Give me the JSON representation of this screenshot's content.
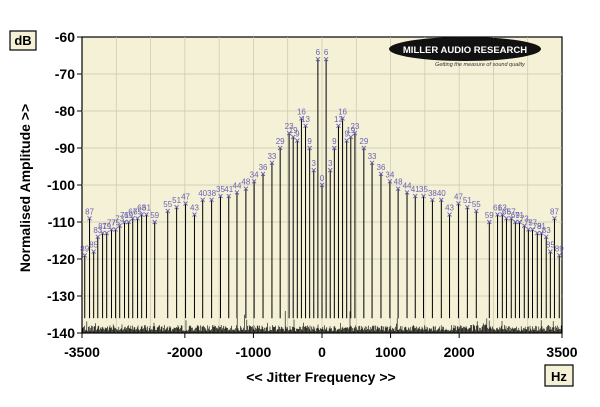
{
  "units": {
    "y": "dB",
    "x": "Hz"
  },
  "logo": {
    "text": "MILLER AUDIO RESEARCH",
    "tagline": "Getting the measure of sound quality"
  },
  "chart_data": {
    "type": "line",
    "title": "",
    "xlabel": "<< Jitter Frequency >>",
    "ylabel": "Normalised Amplitude >>",
    "xlim": [
      -3500,
      3500
    ],
    "ylim": [
      -140,
      -60
    ],
    "xticks": [
      -3500,
      -2000,
      -1000,
      0,
      1000,
      2000,
      3500
    ],
    "xtick_labels": [
      "-3500",
      "-2000",
      "-1000",
      "0",
      "1000",
      "2000",
      "3500"
    ],
    "yticks": [
      -60,
      -70,
      -80,
      -90,
      -100,
      -110,
      -120,
      -130,
      -140
    ],
    "ytick_labels": [
      "-60",
      "-70",
      "-80",
      "-90",
      "-100",
      "-110",
      "-120",
      "-130",
      "-140"
    ],
    "grid": true,
    "legend": "none",
    "marker_color": "#6a63b4",
    "line_color": "#000000",
    "noise_floor_db": -136,
    "series": [
      {
        "points": [
          {
            "x": -3460,
            "y": -119,
            "label": "89"
          },
          {
            "x": -3390,
            "y": -109,
            "label": "87"
          },
          {
            "x": -3330,
            "y": -118,
            "label": "85"
          },
          {
            "x": -3270,
            "y": -114,
            "label": "83"
          },
          {
            "x": -3200,
            "y": -113,
            "label": "81"
          },
          {
            "x": -3140,
            "y": -113,
            "label": "79"
          },
          {
            "x": -3070,
            "y": -112,
            "label": "77"
          },
          {
            "x": -3010,
            "y": -112,
            "label": "75"
          },
          {
            "x": -2950,
            "y": -111,
            "label": "73"
          },
          {
            "x": -2880,
            "y": -110,
            "label": "71"
          },
          {
            "x": -2820,
            "y": -110,
            "label": "69"
          },
          {
            "x": -2760,
            "y": -109,
            "label": "67"
          },
          {
            "x": -2690,
            "y": -109,
            "label": "65"
          },
          {
            "x": -2630,
            "y": -108,
            "label": "63"
          },
          {
            "x": -2560,
            "y": -108,
            "label": "61"
          },
          {
            "x": -2440,
            "y": -110,
            "label": "59"
          },
          {
            "x": -2250,
            "y": -107,
            "label": "55"
          },
          {
            "x": -2120,
            "y": -106,
            "label": "51"
          },
          {
            "x": -1990,
            "y": -105,
            "label": "47"
          },
          {
            "x": -1860,
            "y": -108,
            "label": "43"
          },
          {
            "x": -1740,
            "y": -104,
            "label": "40"
          },
          {
            "x": -1610,
            "y": -104,
            "label": "38"
          },
          {
            "x": -1480,
            "y": -103,
            "label": "35"
          },
          {
            "x": -1360,
            "y": -103,
            "label": "41"
          },
          {
            "x": -1240,
            "y": -102,
            "label": "44"
          },
          {
            "x": -1110,
            "y": -101,
            "label": "48"
          },
          {
            "x": -990,
            "y": -99,
            "label": "34"
          },
          {
            "x": -860,
            "y": -97,
            "label": "36"
          },
          {
            "x": -730,
            "y": -94,
            "label": "33"
          },
          {
            "x": -610,
            "y": -90,
            "label": "29"
          },
          {
            "x": -480,
            "y": -86,
            "label": "23"
          },
          {
            "x": -420,
            "y": -87,
            "label": "19"
          },
          {
            "x": -360,
            "y": -88,
            "label": "9"
          },
          {
            "x": -300,
            "y": -82,
            "label": "16"
          },
          {
            "x": -240,
            "y": -84,
            "label": "13"
          },
          {
            "x": -180,
            "y": -90,
            "label": "9"
          },
          {
            "x": -120,
            "y": -96,
            "label": "3"
          },
          {
            "x": -60,
            "y": -66,
            "label": "6"
          },
          {
            "x": 0,
            "y": -100,
            "label": "0"
          },
          {
            "x": 60,
            "y": -66,
            "label": "6"
          },
          {
            "x": 120,
            "y": -96,
            "label": "3"
          },
          {
            "x": 180,
            "y": -90,
            "label": "9"
          },
          {
            "x": 240,
            "y": -84,
            "label": "13"
          },
          {
            "x": 300,
            "y": -82,
            "label": "16"
          },
          {
            "x": 360,
            "y": -88,
            "label": "9"
          },
          {
            "x": 420,
            "y": -87,
            "label": "19"
          },
          {
            "x": 480,
            "y": -86,
            "label": "23"
          },
          {
            "x": 610,
            "y": -90,
            "label": "29"
          },
          {
            "x": 730,
            "y": -94,
            "label": "33"
          },
          {
            "x": 860,
            "y": -97,
            "label": "36"
          },
          {
            "x": 990,
            "y": -99,
            "label": "34"
          },
          {
            "x": 1110,
            "y": -101,
            "label": "48"
          },
          {
            "x": 1240,
            "y": -102,
            "label": "44"
          },
          {
            "x": 1360,
            "y": -103,
            "label": "41"
          },
          {
            "x": 1480,
            "y": -103,
            "label": "35"
          },
          {
            "x": 1610,
            "y": -104,
            "label": "38"
          },
          {
            "x": 1740,
            "y": -104,
            "label": "40"
          },
          {
            "x": 1860,
            "y": -108,
            "label": "43"
          },
          {
            "x": 1990,
            "y": -105,
            "label": "47"
          },
          {
            "x": 2120,
            "y": -106,
            "label": "51"
          },
          {
            "x": 2250,
            "y": -107,
            "label": "55"
          },
          {
            "x": 2440,
            "y": -110,
            "label": "59"
          },
          {
            "x": 2560,
            "y": -108,
            "label": "61"
          },
          {
            "x": 2630,
            "y": -108,
            "label": "63"
          },
          {
            "x": 2690,
            "y": -109,
            "label": "65"
          },
          {
            "x": 2760,
            "y": -109,
            "label": "67"
          },
          {
            "x": 2820,
            "y": -110,
            "label": "69"
          },
          {
            "x": 2880,
            "y": -110,
            "label": "71"
          },
          {
            "x": 2950,
            "y": -111,
            "label": "73"
          },
          {
            "x": 3010,
            "y": -112,
            "label": "75"
          },
          {
            "x": 3070,
            "y": -112,
            "label": "77"
          },
          {
            "x": 3140,
            "y": -113,
            "label": "79"
          },
          {
            "x": 3200,
            "y": -113,
            "label": "81"
          },
          {
            "x": 3270,
            "y": -114,
            "label": "83"
          },
          {
            "x": 3330,
            "y": -118,
            "label": "85"
          },
          {
            "x": 3390,
            "y": -109,
            "label": "87"
          },
          {
            "x": 3460,
            "y": -119,
            "label": "89"
          }
        ]
      }
    ]
  }
}
